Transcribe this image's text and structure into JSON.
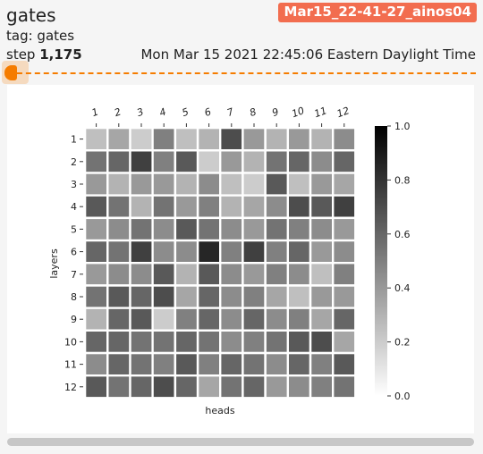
{
  "card": {
    "title": "gates",
    "run_name": "Mar15_22-41-27_ainos04",
    "tag_text": "tag: gates",
    "step_label": "step",
    "step_value": "1,175",
    "timestamp": "Mon Mar 15 2021 22:45:06 Eastern Daylight Time"
  },
  "colors": {
    "accent": "#f57c00",
    "run_badge": "#f26d4f"
  },
  "chart_data": {
    "type": "heatmap",
    "xlabel": "heads",
    "ylabel": "layers",
    "x_ticks": [
      "1",
      "2",
      "3",
      "4",
      "5",
      "6",
      "7",
      "8",
      "9",
      "10",
      "11",
      "12"
    ],
    "y_ticks": [
      "1",
      "2",
      "3",
      "4",
      "5",
      "6",
      "7",
      "8",
      "9",
      "10",
      "11",
      "12"
    ],
    "colorbar": {
      "min": 0.0,
      "max": 1.0,
      "ticks": [
        "0.0",
        "0.2",
        "0.4",
        "0.6",
        "0.8",
        "1.0"
      ]
    },
    "cmap": "Greys",
    "values": [
      [
        0.25,
        0.35,
        0.2,
        0.5,
        0.25,
        0.3,
        0.7,
        0.4,
        0.3,
        0.4,
        0.3,
        0.45
      ],
      [
        0.55,
        0.6,
        0.75,
        0.5,
        0.65,
        0.2,
        0.4,
        0.3,
        0.55,
        0.6,
        0.45,
        0.6
      ],
      [
        0.4,
        0.3,
        0.4,
        0.4,
        0.3,
        0.45,
        0.25,
        0.2,
        0.65,
        0.25,
        0.4,
        0.35
      ],
      [
        0.65,
        0.55,
        0.3,
        0.55,
        0.4,
        0.5,
        0.3,
        0.35,
        0.45,
        0.7,
        0.65,
        0.75
      ],
      [
        0.4,
        0.45,
        0.55,
        0.45,
        0.65,
        0.55,
        0.45,
        0.4,
        0.55,
        0.5,
        0.45,
        0.4
      ],
      [
        0.6,
        0.55,
        0.75,
        0.45,
        0.45,
        0.85,
        0.5,
        0.75,
        0.5,
        0.6,
        0.4,
        0.45
      ],
      [
        0.4,
        0.45,
        0.45,
        0.65,
        0.3,
        0.65,
        0.45,
        0.4,
        0.5,
        0.45,
        0.25,
        0.5
      ],
      [
        0.55,
        0.65,
        0.6,
        0.7,
        0.35,
        0.6,
        0.45,
        0.5,
        0.35,
        0.25,
        0.4,
        0.4
      ],
      [
        0.3,
        0.6,
        0.65,
        0.2,
        0.5,
        0.6,
        0.45,
        0.6,
        0.45,
        0.5,
        0.35,
        0.6
      ],
      [
        0.6,
        0.6,
        0.55,
        0.55,
        0.6,
        0.55,
        0.45,
        0.5,
        0.55,
        0.65,
        0.7,
        0.35
      ],
      [
        0.45,
        0.6,
        0.55,
        0.5,
        0.65,
        0.5,
        0.6,
        0.55,
        0.45,
        0.6,
        0.5,
        0.65
      ],
      [
        0.65,
        0.55,
        0.6,
        0.7,
        0.6,
        0.35,
        0.55,
        0.6,
        0.4,
        0.45,
        0.5,
        0.55
      ]
    ]
  }
}
